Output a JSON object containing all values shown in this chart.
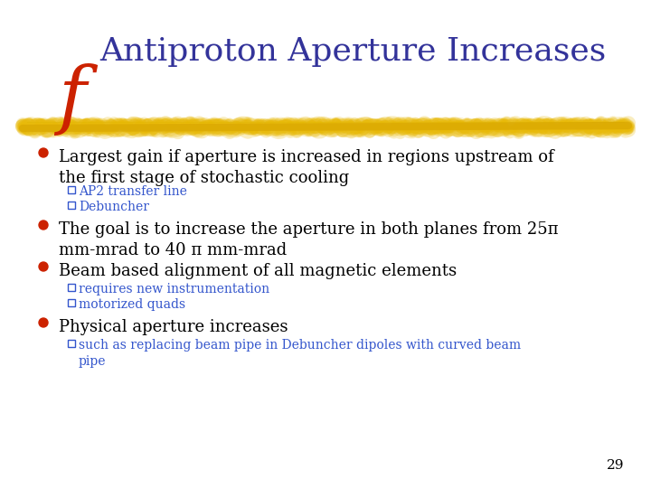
{
  "title": "Antiproton Aperture Increases",
  "title_color": "#33339a",
  "title_fontsize": 26,
  "f_letter_color": "#cc2200",
  "f_letter_fontsize": 60,
  "background_color": "#ffffff",
  "bullet_color": "#cc2200",
  "sub_bullet_color": "#3355cc",
  "stroke_color": "#e8b800",
  "page_number": "29",
  "bullets": [
    {
      "text": "Largest gain if aperture is increased in regions upstream of\nthe first stage of stochastic cooling",
      "fontsize": 13,
      "color": "#000000",
      "sub_items": [
        {
          "text": "AP2 transfer line",
          "color": "#3355cc",
          "fontsize": 10
        },
        {
          "text": "Debuncher",
          "color": "#3355cc",
          "fontsize": 10
        }
      ]
    },
    {
      "text": "The goal is to increase the aperture in both planes from 25π\nmm-mrad to 40 π mm-mrad",
      "fontsize": 13,
      "color": "#000000",
      "sub_items": []
    },
    {
      "text": "Beam based alignment of all magnetic elements",
      "fontsize": 13,
      "color": "#000000",
      "sub_items": [
        {
          "text": "requires new instrumentation",
          "color": "#3355cc",
          "fontsize": 10
        },
        {
          "text": "motorized quads",
          "color": "#3355cc",
          "fontsize": 10
        }
      ]
    },
    {
      "text": "Physical aperture increases",
      "fontsize": 13,
      "color": "#000000",
      "sub_items": [
        {
          "text": "such as replacing beam pipe in Debuncher dipoles with curved beam\npipe",
          "color": "#3355cc",
          "fontsize": 10
        }
      ]
    }
  ]
}
